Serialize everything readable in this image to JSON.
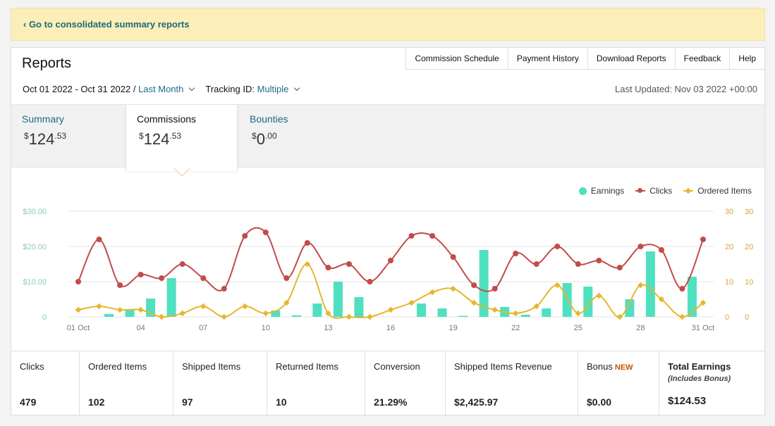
{
  "banner": {
    "link": "‹ Go to consolidated summary reports"
  },
  "page_title": "Reports",
  "nav": [
    "Commission Schedule",
    "Payment History",
    "Download Reports",
    "Feedback",
    "Help"
  ],
  "filters": {
    "date_range": "Oct 01 2022 - Oct 31 2022 /",
    "period": "Last Month",
    "tracking_label": "Tracking ID:",
    "tracking_value": "Multiple"
  },
  "last_updated": "Last Updated: Nov 03 2022 +00:00",
  "tabs": [
    {
      "label": "Summary",
      "value": "124",
      "cents": ".53",
      "active": false
    },
    {
      "label": "Commissions",
      "value": "124",
      "cents": ".53",
      "active": true
    },
    {
      "label": "Bounties",
      "value": "0",
      "cents": ".00",
      "active": false
    }
  ],
  "currency_symbol": "$",
  "legend": {
    "earnings": "Earnings",
    "clicks": "Clicks",
    "ordered": "Ordered Items"
  },
  "colors": {
    "earnings": "#4fe0c0",
    "clicks": "#c24b4b",
    "ordered": "#e6b62e",
    "link": "#1f6a87",
    "banner": "#fbeeb8"
  },
  "chart_data": {
    "type": "bar+line",
    "x": [
      "01 Oct",
      "02",
      "03",
      "04",
      "05",
      "06",
      "07",
      "08",
      "09",
      "10",
      "11",
      "12",
      "13",
      "14",
      "15",
      "16",
      "17",
      "18",
      "19",
      "20",
      "21",
      "22",
      "23",
      "24",
      "25",
      "26",
      "27",
      "28",
      "29",
      "30",
      "31 Oct"
    ],
    "x_tick_labels": [
      "01 Oct",
      "04",
      "07",
      "10",
      "13",
      "16",
      "19",
      "22",
      "25",
      "28",
      "31 Oct"
    ],
    "left_axis": {
      "ticks": [
        "$30.00",
        "$20.00",
        "$10.00",
        "0"
      ],
      "ylim": [
        0,
        30
      ]
    },
    "right_axis": {
      "ticks": [
        "30",
        "20",
        "10",
        "0"
      ],
      "ylim": [
        0,
        30
      ]
    },
    "series": [
      {
        "name": "Earnings",
        "type": "bar",
        "axis": "left",
        "values": [
          0,
          0.8,
          2.2,
          5.2,
          11,
          0,
          0,
          0,
          0,
          1.8,
          0.4,
          3.8,
          10,
          5.6,
          0,
          0,
          3.8,
          2.4,
          0.3,
          19,
          2.8,
          0.6,
          2.4,
          9.6,
          8.6,
          0,
          5,
          18.6,
          0,
          11.4,
          0
        ]
      },
      {
        "name": "Clicks",
        "type": "line",
        "axis": "right",
        "values": [
          10,
          22,
          9,
          12,
          11,
          15,
          11,
          8,
          23,
          24,
          11,
          21,
          14,
          15,
          10,
          16,
          23,
          23,
          17,
          9,
          8,
          18,
          15,
          20,
          15,
          16,
          14,
          20,
          19,
          8,
          22
        ]
      },
      {
        "name": "Ordered Items",
        "type": "line",
        "axis": "right",
        "values": [
          2,
          3,
          2,
          2,
          0,
          1,
          3,
          0,
          3,
          1,
          4,
          15,
          1,
          0,
          0,
          2,
          4,
          7,
          8,
          4,
          2,
          1,
          3,
          9,
          1,
          6,
          0,
          9,
          5,
          0,
          4
        ]
      }
    ]
  },
  "stats": [
    {
      "label": "Clicks",
      "value": "479"
    },
    {
      "label": "Ordered Items",
      "value": "102"
    },
    {
      "label": "Shipped Items",
      "value": "97"
    },
    {
      "label": "Returned Items",
      "value": "10"
    },
    {
      "label": "Conversion",
      "value": "21.29%"
    },
    {
      "label": "Shipped Items Revenue",
      "value": "$2,425.97"
    },
    {
      "label": "Bonus",
      "badge": "NEW",
      "value": "$0.00"
    },
    {
      "label": "Total Earnings",
      "sub": "(Includes Bonus)",
      "value": "$124.53"
    }
  ]
}
